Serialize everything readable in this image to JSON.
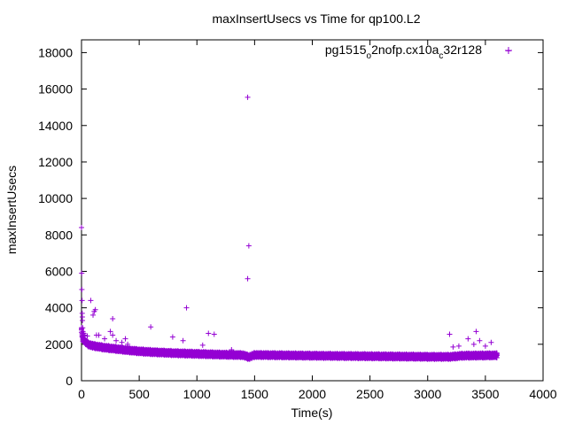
{
  "chart_data": {
    "type": "scatter",
    "title": "maxInsertUsecs vs Time for qp100.L2",
    "xlabel": "Time(s)",
    "ylabel": "maxInsertUsecs",
    "xlim": [
      0,
      4000
    ],
    "ylim": [
      0,
      18700
    ],
    "x_ticks": [
      "0",
      "500",
      "1000",
      "1500",
      "2000",
      "2500",
      "3000",
      "3500",
      "4000"
    ],
    "y_ticks": [
      "0",
      "2000",
      "4000",
      "6000",
      "8000",
      "10000",
      "12000",
      "14000",
      "16000",
      "18000"
    ],
    "grid": false,
    "legend_position": "top-right",
    "series_color": "#9400d3",
    "series": [
      {
        "name": "pg1515_o2nofp.cx10a_c32r128",
        "name_parts": [
          {
            "text": "pg1515",
            "sub": false
          },
          {
            "text": "o",
            "sub": true
          },
          {
            "text": "2nofp.cx10a",
            "sub": false
          },
          {
            "text": "c",
            "sub": true
          },
          {
            "text": "32r128",
            "sub": false
          }
        ],
        "baseline": [
          [
            0,
            2800
          ],
          [
            10,
            2300
          ],
          [
            30,
            2150
          ],
          [
            60,
            2000
          ],
          [
            100,
            1920
          ],
          [
            200,
            1820
          ],
          [
            300,
            1750
          ],
          [
            400,
            1680
          ],
          [
            500,
            1620
          ],
          [
            600,
            1580
          ],
          [
            800,
            1520
          ],
          [
            1000,
            1480
          ],
          [
            1200,
            1440
          ],
          [
            1400,
            1410
          ],
          [
            1450,
            1300
          ],
          [
            1500,
            1420
          ],
          [
            2000,
            1380
          ],
          [
            2500,
            1350
          ],
          [
            3000,
            1320
          ],
          [
            3200,
            1320
          ],
          [
            3300,
            1380
          ],
          [
            3600,
            1400
          ]
        ],
        "outliers": [
          [
            0,
            8400
          ],
          [
            2,
            5900
          ],
          [
            3,
            5000
          ],
          [
            5,
            4400
          ],
          [
            6,
            3700
          ],
          [
            7,
            3500
          ],
          [
            8,
            3300
          ],
          [
            10,
            2900
          ],
          [
            12,
            2700
          ],
          [
            20,
            2600
          ],
          [
            30,
            2500
          ],
          [
            50,
            2450
          ],
          [
            80,
            4400
          ],
          [
            100,
            3600
          ],
          [
            110,
            3800
          ],
          [
            120,
            3900
          ],
          [
            130,
            2500
          ],
          [
            150,
            2500
          ],
          [
            200,
            2300
          ],
          [
            250,
            2700
          ],
          [
            270,
            2500
          ],
          [
            270,
            3400
          ],
          [
            300,
            2200
          ],
          [
            350,
            2100
          ],
          [
            380,
            2300
          ],
          [
            400,
            2000
          ],
          [
            600,
            2950
          ],
          [
            790,
            2400
          ],
          [
            880,
            2200
          ],
          [
            910,
            4000
          ],
          [
            1050,
            1950
          ],
          [
            1100,
            2600
          ],
          [
            1150,
            2550
          ],
          [
            1300,
            1700
          ],
          [
            1440,
            15550
          ],
          [
            1450,
            7400
          ],
          [
            1440,
            5600
          ],
          [
            3190,
            2550
          ],
          [
            3220,
            1850
          ],
          [
            3270,
            1900
          ],
          [
            3350,
            2300
          ],
          [
            3400,
            2000
          ],
          [
            3420,
            2700
          ],
          [
            3450,
            2200
          ],
          [
            3500,
            1900
          ],
          [
            3550,
            2100
          ],
          [
            3600,
            1500
          ],
          [
            3700,
            18100
          ]
        ]
      }
    ]
  }
}
